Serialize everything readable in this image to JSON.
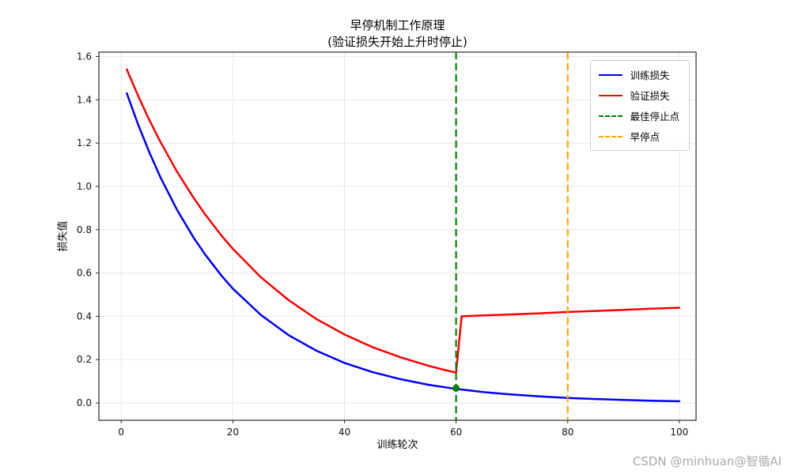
{
  "title": {
    "line1": "早停机制工作原理",
    "line2": "(验证损失开始上升时停止)"
  },
  "watermark": "CSDN @minhuan@智循AI",
  "chart_data": {
    "type": "line",
    "title": "早停机制工作原理 (验证损失开始上升时停止)",
    "xlabel": "训练轮次",
    "ylabel": "损失值",
    "xlim": [
      -4,
      103
    ],
    "ylim": [
      -0.08,
      1.62
    ],
    "xticks": [
      0,
      20,
      40,
      60,
      80,
      100
    ],
    "yticks": [
      0.0,
      0.2,
      0.4,
      0.6,
      0.8,
      1.0,
      1.2,
      1.4,
      1.6
    ],
    "grid": true,
    "legend_position": "upper right",
    "best_point": {
      "x": 60,
      "y": 0.068,
      "color": "#008000"
    },
    "series": [
      {
        "name": "训练损失",
        "color": "#0000ff",
        "style": "solid",
        "x": [
          1,
          3,
          5,
          7,
          10,
          13,
          15,
          18,
          20,
          25,
          30,
          35,
          40,
          45,
          50,
          55,
          60,
          65,
          70,
          75,
          80,
          85,
          90,
          95,
          100
        ],
        "y": [
          1.43,
          1.288,
          1.16,
          1.044,
          0.892,
          0.762,
          0.687,
          0.587,
          0.528,
          0.407,
          0.313,
          0.241,
          0.185,
          0.143,
          0.11,
          0.084,
          0.065,
          0.05,
          0.039,
          0.03,
          0.023,
          0.018,
          0.014,
          0.01,
          0.008
        ]
      },
      {
        "name": "验证损失",
        "color": "#ff0000",
        "style": "solid",
        "x": [
          1,
          3,
          5,
          7,
          10,
          13,
          15,
          18,
          20,
          25,
          30,
          35,
          40,
          45,
          50,
          55,
          58,
          60,
          61,
          65,
          70,
          75,
          80,
          85,
          90,
          95,
          100
        ],
        "y": [
          1.54,
          1.42,
          1.309,
          1.207,
          1.068,
          0.946,
          0.872,
          0.772,
          0.712,
          0.581,
          0.475,
          0.387,
          0.316,
          0.258,
          0.211,
          0.172,
          0.152,
          0.14,
          0.4,
          0.404,
          0.409,
          0.414,
          0.42,
          0.425,
          0.43,
          0.435,
          0.44
        ]
      },
      {
        "name": "最佳停止点",
        "color": "#008000",
        "style": "dashed",
        "vline": 60
      },
      {
        "name": "早停点",
        "color": "#ffa500",
        "style": "dashed",
        "vline": 80
      }
    ]
  }
}
